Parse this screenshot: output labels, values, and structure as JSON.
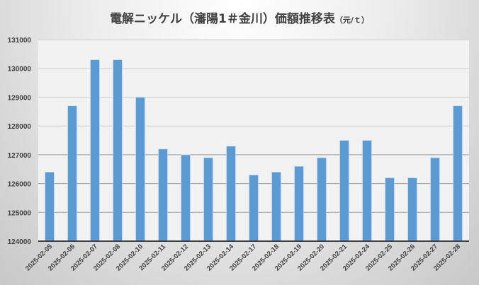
{
  "chart_data": {
    "type": "bar",
    "title": "電解ニッケル（瀋陽1＃金川）価額推移表",
    "title_unit": "（元/ｔ）",
    "xlabel": "",
    "ylabel": "",
    "ylim": [
      124000,
      131000
    ],
    "yticks": [
      "124000",
      "125000",
      "126000",
      "127000",
      "128000",
      "129000",
      "130000",
      "131000"
    ],
    "grid": true,
    "bar_color": "#5b9bd5",
    "categories": [
      "2025-02-05",
      "2025-02-06",
      "2025-02-07",
      "2025-02-08",
      "2025-02-10",
      "2025-02-11",
      "2025-02-12",
      "2025-02-13",
      "2025-02-14",
      "2025-02-17",
      "2025-02-18",
      "2025-02-19",
      "2025-02-20",
      "2025-02-21",
      "2025-02-24",
      "2025-02-25",
      "2025-02-26",
      "2025-02-27",
      "2025-02-28"
    ],
    "values": [
      126400,
      128700,
      130300,
      130300,
      129000,
      127200,
      127000,
      126900,
      127300,
      126300,
      126400,
      126600,
      126900,
      127500,
      127500,
      126200,
      126200,
      126900,
      128700
    ]
  }
}
